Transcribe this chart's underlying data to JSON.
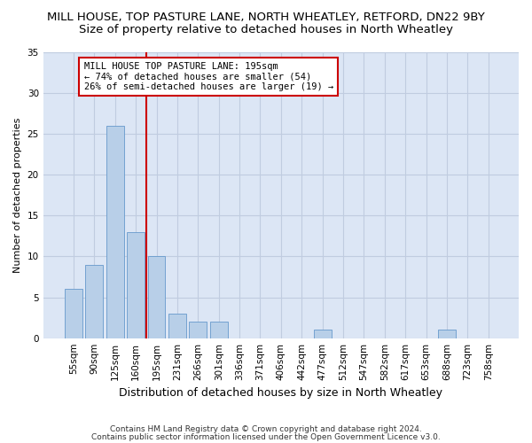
{
  "title": "MILL HOUSE, TOP PASTURE LANE, NORTH WHEATLEY, RETFORD, DN22 9BY",
  "subtitle": "Size of property relative to detached houses in North Wheatley",
  "xlabel": "Distribution of detached houses by size in North Wheatley",
  "ylabel": "Number of detached properties",
  "categories": [
    "55sqm",
    "90sqm",
    "125sqm",
    "160sqm",
    "195sqm",
    "231sqm",
    "266sqm",
    "301sqm",
    "336sqm",
    "371sqm",
    "406sqm",
    "442sqm",
    "477sqm",
    "512sqm",
    "547sqm",
    "582sqm",
    "617sqm",
    "653sqm",
    "688sqm",
    "723sqm",
    "758sqm"
  ],
  "values": [
    6,
    9,
    26,
    13,
    10,
    3,
    2,
    2,
    0,
    0,
    0,
    0,
    1,
    0,
    0,
    0,
    0,
    0,
    1,
    0,
    0
  ],
  "bar_color": "#b8cfe8",
  "bar_edgecolor": "#6699cc",
  "vline_index": 4,
  "vline_color": "#cc0000",
  "annotation_text": "MILL HOUSE TOP PASTURE LANE: 195sqm\n← 74% of detached houses are smaller (54)\n26% of semi-detached houses are larger (19) →",
  "annotation_box_edgecolor": "#cc0000",
  "ylim": [
    0,
    35
  ],
  "yticks": [
    0,
    5,
    10,
    15,
    20,
    25,
    30,
    35
  ],
  "footer_line1": "Contains HM Land Registry data © Crown copyright and database right 2024.",
  "footer_line2": "Contains public sector information licensed under the Open Government Licence v3.0.",
  "bg_color": "#ffffff",
  "plot_bg_color": "#dce6f5",
  "grid_color": "#c0cce0",
  "title_fontsize": 9.5,
  "subtitle_fontsize": 9.5,
  "xlabel_fontsize": 9,
  "ylabel_fontsize": 8,
  "tick_fontsize": 7.5,
  "annotation_fontsize": 7.5,
  "footer_fontsize": 6.5
}
